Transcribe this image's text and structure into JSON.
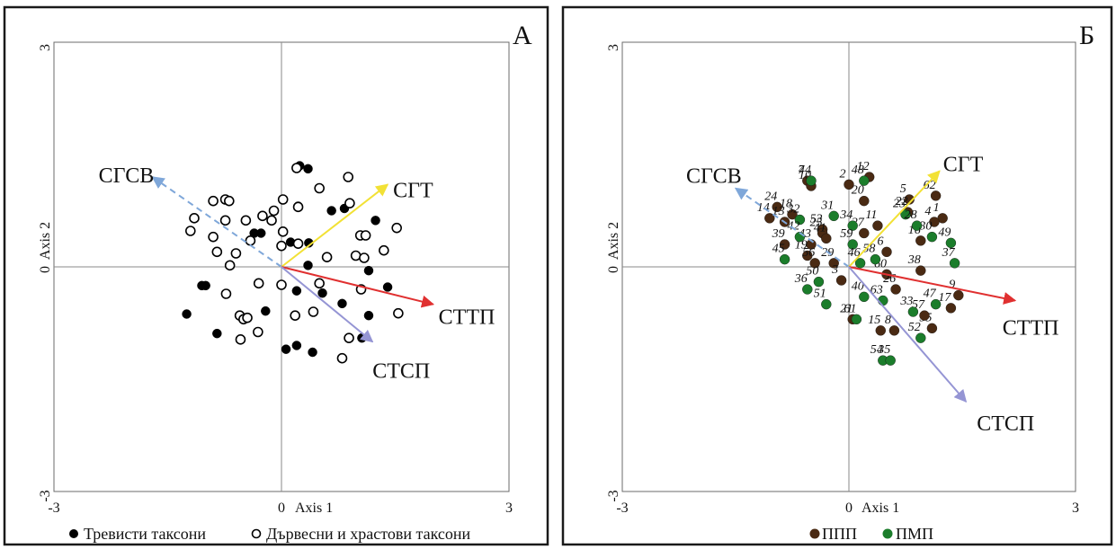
{
  "chart_data": [
    {
      "type": "scatter",
      "panel_letter": "А",
      "xlabel": "Axis 1",
      "ylabel": "Axis 2",
      "xlim": [
        -3,
        3
      ],
      "ylim": [
        -3,
        3
      ],
      "x_ticks": [
        "-3",
        "0",
        "3"
      ],
      "y_ticks": [
        "3",
        "0",
        "-3"
      ],
      "grid": false,
      "vectors": [
        {
          "label": "СГСВ",
          "x": -1.7,
          "y": 1.2,
          "color": "#7fa7d9",
          "dashed": true
        },
        {
          "label": "СГТ",
          "x": 1.4,
          "y": 1.1,
          "color": "#f2e135",
          "dashed": false
        },
        {
          "label": "СТТП",
          "x": 2.0,
          "y": -0.5,
          "color": "#e03030",
          "dashed": false
        },
        {
          "label": "СТСП",
          "x": 1.2,
          "y": -1.0,
          "color": "#9595d4",
          "dashed": false
        }
      ],
      "series": [
        {
          "name": "Тревисти таксони",
          "style": "filled",
          "points": [
            [
              0.35,
              1.31
            ],
            [
              0.24,
              1.35
            ],
            [
              -0.36,
              0.45
            ],
            [
              -0.27,
              0.45
            ],
            [
              0.22,
              0.81
            ],
            [
              0.66,
              0.75
            ],
            [
              0.83,
              0.78
            ],
            [
              1.24,
              0.62
            ],
            [
              0.12,
              0.33
            ],
            [
              0.36,
              0.32
            ],
            [
              0.35,
              0.02
            ],
            [
              1.15,
              -0.05
            ],
            [
              -1.05,
              -0.25
            ],
            [
              -1.0,
              -0.25
            ],
            [
              0.2,
              -0.32
            ],
            [
              1.4,
              -0.27
            ],
            [
              0.54,
              -0.35
            ],
            [
              0.8,
              -0.49
            ],
            [
              -1.25,
              -0.63
            ],
            [
              -0.21,
              -0.59
            ],
            [
              1.15,
              -0.65
            ],
            [
              -0.85,
              -0.89
            ],
            [
              0.2,
              -1.05
            ],
            [
              0.06,
              -1.1
            ],
            [
              0.41,
              -1.14
            ],
            [
              1.06,
              -0.95
            ]
          ]
        },
        {
          "name": "Дървесни и храстови таксони",
          "style": "hollow",
          "points": [
            [
              0.2,
              1.32
            ],
            [
              0.88,
              1.2
            ],
            [
              0.5,
              1.05
            ],
            [
              -0.9,
              0.88
            ],
            [
              -0.74,
              0.9
            ],
            [
              -0.69,
              0.88
            ],
            [
              0.02,
              0.9
            ],
            [
              0.9,
              0.85
            ],
            [
              -0.1,
              0.75
            ],
            [
              -0.25,
              0.68
            ],
            [
              0.22,
              0.8
            ],
            [
              -1.15,
              0.65
            ],
            [
              -0.47,
              0.62
            ],
            [
              -0.74,
              0.62
            ],
            [
              -0.13,
              0.62
            ],
            [
              -1.2,
              0.48
            ],
            [
              -0.41,
              0.35
            ],
            [
              0.02,
              0.47
            ],
            [
              -0.9,
              0.4
            ],
            [
              0.0,
              0.28
            ],
            [
              0.22,
              0.31
            ],
            [
              1.04,
              0.42
            ],
            [
              1.11,
              0.42
            ],
            [
              1.52,
              0.52
            ],
            [
              -0.85,
              0.2
            ],
            [
              -0.6,
              0.18
            ],
            [
              1.35,
              0.22
            ],
            [
              0.6,
              0.13
            ],
            [
              0.98,
              0.15
            ],
            [
              -0.68,
              0.02
            ],
            [
              1.09,
              0.12
            ],
            [
              -0.73,
              -0.36
            ],
            [
              -0.3,
              -0.22
            ],
            [
              0.0,
              -0.24
            ],
            [
              0.5,
              -0.22
            ],
            [
              1.05,
              -0.3
            ],
            [
              -0.55,
              -0.65
            ],
            [
              -0.5,
              -0.7
            ],
            [
              -0.45,
              -0.68
            ],
            [
              0.42,
              -0.6
            ],
            [
              0.18,
              -0.65
            ],
            [
              1.54,
              -0.62
            ],
            [
              -0.31,
              -0.87
            ],
            [
              -0.54,
              -0.97
            ],
            [
              0.89,
              -0.95
            ],
            [
              0.8,
              -1.22
            ]
          ]
        }
      ],
      "legend": [
        "Тревисти таксони",
        "Дървесни и храстови таксони"
      ]
    },
    {
      "type": "scatter",
      "panel_letter": "Б",
      "xlabel": "Axis 1",
      "ylabel": "Axis 2",
      "xlim": [
        -3,
        3
      ],
      "ylim": [
        -3,
        3
      ],
      "x_ticks": [
        "-3",
        "0",
        "3"
      ],
      "y_ticks": [
        "3",
        "0",
        "-3"
      ],
      "grid": false,
      "vectors": [
        {
          "label": "СГСВ",
          "x": -1.5,
          "y": 1.05,
          "color": "#7fa7d9",
          "dashed": true
        },
        {
          "label": "СГТ",
          "x": 1.2,
          "y": 1.28,
          "color": "#f2e135",
          "dashed": false
        },
        {
          "label": "СТТП",
          "x": 2.2,
          "y": -0.45,
          "color": "#e03030",
          "dashed": false
        },
        {
          "label": "СТСП",
          "x": 1.55,
          "y": -1.8,
          "color": "#9595d4",
          "dashed": false
        }
      ],
      "series": [
        {
          "name": "ППП",
          "color": "#4a2a13",
          "points": [
            {
              "n": "7",
              "x": -0.55,
              "y": 1.15
            },
            {
              "n": "10",
              "x": -0.5,
              "y": 1.08
            },
            {
              "n": "24",
              "x": -0.95,
              "y": 0.8
            },
            {
              "n": "2",
              "x": 0.0,
              "y": 1.1
            },
            {
              "n": "12",
              "x": 0.27,
              "y": 1.2
            },
            {
              "n": "20",
              "x": 0.2,
              "y": 0.88
            },
            {
              "n": "5",
              "x": 0.8,
              "y": 0.9
            },
            {
              "n": "62",
              "x": 1.15,
              "y": 0.95
            },
            {
              "n": "22",
              "x": 0.78,
              "y": 0.73
            },
            {
              "n": "18",
              "x": -0.75,
              "y": 0.7
            },
            {
              "n": "14",
              "x": -1.05,
              "y": 0.65
            },
            {
              "n": "13",
              "x": -0.85,
              "y": 0.6
            },
            {
              "n": "1",
              "x": 1.24,
              "y": 0.65
            },
            {
              "n": "4",
              "x": 1.13,
              "y": 0.6
            },
            {
              "n": "11",
              "x": 0.38,
              "y": 0.55
            },
            {
              "n": "53",
              "x": -0.35,
              "y": 0.5
            },
            {
              "n": "25",
              "x": -0.35,
              "y": 0.45
            },
            {
              "n": "27",
              "x": 0.2,
              "y": 0.45
            },
            {
              "n": "41",
              "x": -0.3,
              "y": 0.38
            },
            {
              "n": "43",
              "x": -0.5,
              "y": 0.3
            },
            {
              "n": "39",
              "x": -0.85,
              "y": 0.3
            },
            {
              "n": "16",
              "x": 0.95,
              "y": 0.35
            },
            {
              "n": "6",
              "x": 0.5,
              "y": 0.2
            },
            {
              "n": "19",
              "x": -0.55,
              "y": 0.15
            },
            {
              "n": "56",
              "x": -0.45,
              "y": 0.05
            },
            {
              "n": "29",
              "x": -0.2,
              "y": 0.05
            },
            {
              "n": "60",
              "x": 0.5,
              "y": -0.1
            },
            {
              "n": "3",
              "x": -0.1,
              "y": -0.18
            },
            {
              "n": "26",
              "x": 0.62,
              "y": -0.3
            },
            {
              "n": "9",
              "x": 1.45,
              "y": -0.38
            },
            {
              "n": "17",
              "x": 1.35,
              "y": -0.55
            },
            {
              "n": "21",
              "x": 0.05,
              "y": -0.7
            },
            {
              "n": "15",
              "x": 0.42,
              "y": -0.85
            },
            {
              "n": "8",
              "x": 0.6,
              "y": -0.85
            },
            {
              "n": "55",
              "x": 1.1,
              "y": -0.82
            },
            {
              "n": "57",
              "x": 1.0,
              "y": -0.65
            },
            {
              "n": "38",
              "x": 0.95,
              "y": -0.05
            }
          ]
        },
        {
          "name": "ПМП",
          "color": "#1b7d2b",
          "points": [
            {
              "n": "44",
              "x": -0.5,
              "y": 1.15
            },
            {
              "n": "48",
              "x": 0.2,
              "y": 1.15
            },
            {
              "n": "31",
              "x": -0.2,
              "y": 0.68
            },
            {
              "n": "34",
              "x": 0.05,
              "y": 0.55
            },
            {
              "n": "23",
              "x": 0.75,
              "y": 0.7
            },
            {
              "n": "28",
              "x": 0.9,
              "y": 0.55
            },
            {
              "n": "32",
              "x": -0.65,
              "y": 0.63
            },
            {
              "n": "42",
              "x": -0.65,
              "y": 0.4
            },
            {
              "n": "59",
              "x": 0.05,
              "y": 0.3
            },
            {
              "n": "30",
              "x": 1.1,
              "y": 0.4
            },
            {
              "n": "49",
              "x": 1.35,
              "y": 0.32
            },
            {
              "n": "37",
              "x": 1.4,
              "y": 0.05
            },
            {
              "n": "58",
              "x": 0.35,
              "y": 0.1
            },
            {
              "n": "46",
              "x": 0.15,
              "y": 0.05
            },
            {
              "n": "52",
              "x": 0.95,
              "y": -0.95
            },
            {
              "n": "63",
              "x": 0.45,
              "y": -0.45
            },
            {
              "n": "40",
              "x": 0.2,
              "y": -0.4
            },
            {
              "n": "51",
              "x": -0.3,
              "y": -0.5
            },
            {
              "n": "61",
              "x": 0.1,
              "y": -0.7
            },
            {
              "n": "50",
              "x": -0.4,
              "y": -0.2
            },
            {
              "n": "36",
              "x": -0.55,
              "y": -0.3
            },
            {
              "n": "45",
              "x": -0.85,
              "y": 0.1
            },
            {
              "n": "47",
              "x": 1.15,
              "y": -0.5
            },
            {
              "n": "33",
              "x": 0.85,
              "y": -0.6
            },
            {
              "n": "54",
              "x": 0.45,
              "y": -1.25
            },
            {
              "n": "35",
              "x": 0.55,
              "y": -1.25
            }
          ]
        }
      ],
      "legend": [
        "ППП",
        "ПМП"
      ]
    }
  ]
}
